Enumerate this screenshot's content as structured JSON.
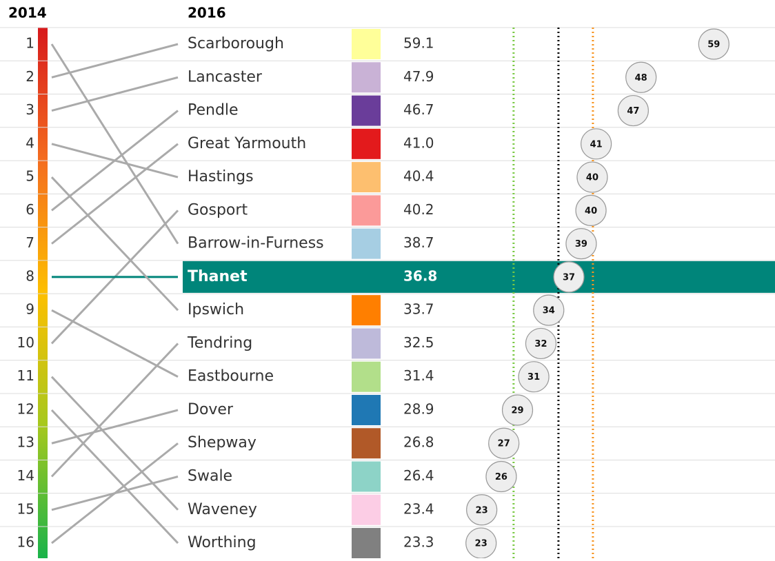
{
  "chart_data": {
    "type": "slope-dot",
    "header_left": "2014",
    "header_right": "2016",
    "ranks_2014": [
      1,
      2,
      3,
      4,
      5,
      6,
      7,
      8,
      9,
      10,
      11,
      12,
      13,
      14,
      15,
      16
    ],
    "categories": [
      "Scarborough",
      "Lancaster",
      "Pendle",
      "Great Yarmouth",
      "Hastings",
      "Gosport",
      "Barrow-in-Furness",
      "Thanet",
      "Ipswich",
      "Tendring",
      "Eastbourne",
      "Dover",
      "Shepway",
      "Swale",
      "Waveney",
      "Worthing"
    ],
    "prev_rank": [
      2,
      3,
      6,
      7,
      4,
      10,
      1,
      8,
      5,
      14,
      9,
      13,
      16,
      15,
      11,
      12
    ],
    "values": [
      59.1,
      47.9,
      46.7,
      41.0,
      40.4,
      40.2,
      38.7,
      36.8,
      33.7,
      32.5,
      31.4,
      28.9,
      26.8,
      26.4,
      23.4,
      23.3
    ],
    "value_labels": [
      "59.1",
      "47.9",
      "46.7",
      "41.0",
      "40.4",
      "40.2",
      "38.7",
      "36.8",
      "33.7",
      "32.5",
      "31.4",
      "28.9",
      "26.8",
      "26.4",
      "23.4",
      "23.3"
    ],
    "dot_labels": [
      "59",
      "48",
      "47",
      "41",
      "40",
      "40",
      "39",
      "37",
      "34",
      "32",
      "31",
      "29",
      "27",
      "26",
      "23",
      "23"
    ],
    "colors": [
      "#ffff99",
      "#c9b2d6",
      "#6a3d9a",
      "#e31a1c",
      "#fdbf6f",
      "#fb9a99",
      "#a6cee3",
      "#00857a",
      "#ff7f00",
      "#bebada",
      "#b2df8a",
      "#1f78b4",
      "#b15928",
      "#8dd3c7",
      "#fccde5",
      "#808080"
    ],
    "highlight_index": 7,
    "highlight_color": "#00857a",
    "xlim": [
      20,
      67
    ],
    "reference_lines": [
      {
        "value": 28.3,
        "color": "#7ac943"
      },
      {
        "value": 35.2,
        "color": "#000000"
      },
      {
        "value": 40.5,
        "color": "#f7931e"
      }
    ]
  }
}
